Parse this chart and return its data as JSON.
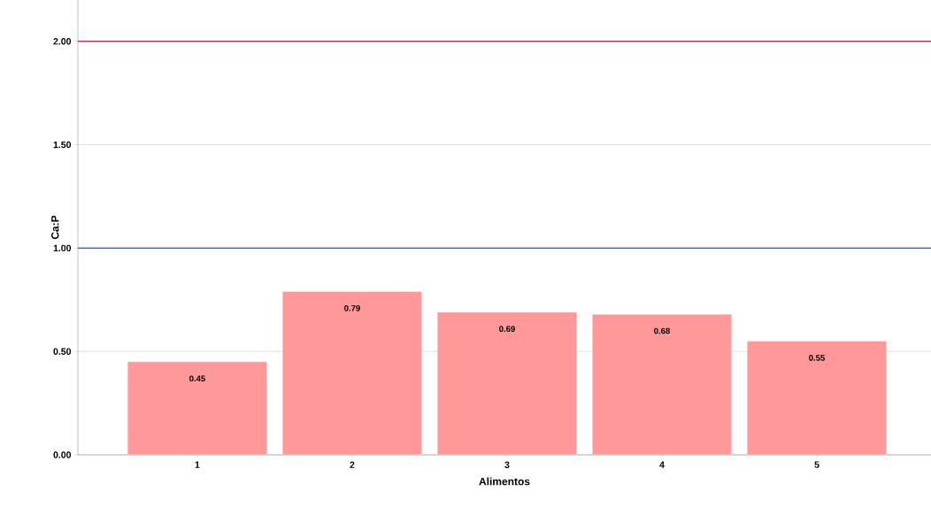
{
  "chart_data": {
    "type": "bar",
    "xlabel": "Alimentos",
    "ylabel": "Ca:P",
    "categories": [
      "1",
      "2",
      "3",
      "4",
      "5"
    ],
    "values": [
      0.45,
      0.79,
      0.69,
      0.68,
      0.55
    ],
    "value_labels": [
      "0.45",
      "0.79",
      "0.69",
      "0.68",
      "0.55"
    ],
    "color": "#ff9999",
    "ylim": [
      0,
      2.2
    ],
    "yticks": [
      {
        "value": 0,
        "label": "0.00"
      },
      {
        "value": 0.5,
        "label": "0.50"
      },
      {
        "value": 1,
        "label": "1.00"
      },
      {
        "value": 1.5,
        "label": "1.50"
      },
      {
        "value": 2,
        "label": "2.00"
      }
    ],
    "grid": "y",
    "ref_lines": [
      {
        "axis": "y",
        "value": 1,
        "color": "#3f51b5"
      },
      {
        "axis": "y",
        "value": 2,
        "color": "#d81b4f"
      }
    ]
  }
}
